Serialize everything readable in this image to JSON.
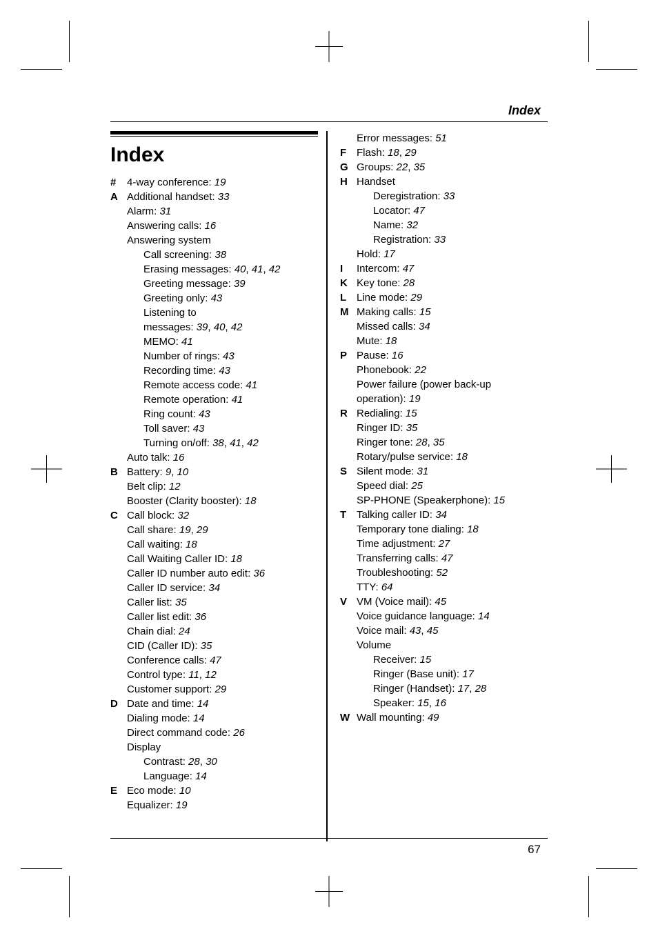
{
  "runningHead": "Index",
  "title": "Index",
  "pageNumber": "67",
  "left": [
    {
      "letter": "#",
      "rows": [
        {
          "t": "4-way conference:",
          "p": "19"
        }
      ]
    },
    {
      "letter": "A",
      "rows": [
        {
          "t": "Additional handset:",
          "p": "33"
        },
        {
          "t": "Alarm:",
          "p": "31"
        },
        {
          "t": "Answering calls:",
          "p": "16"
        },
        {
          "t": "Answering system",
          "p": ""
        },
        {
          "t": "Call screening:",
          "p": "38",
          "indent": 1
        },
        {
          "t": "Erasing messages:",
          "p": "40, 41, 42",
          "indent": 1
        },
        {
          "t": "Greeting message:",
          "p": "39",
          "indent": 1
        },
        {
          "t": "Greeting only:",
          "p": "43",
          "indent": 1
        },
        {
          "t": "Listening to",
          "p": "",
          "indent": 1
        },
        {
          "t": "messages:",
          "p": "39, 40, 42",
          "indent": 1
        },
        {
          "t": "MEMO:",
          "p": "41",
          "indent": 1
        },
        {
          "t": "Number of rings:",
          "p": "43",
          "indent": 1
        },
        {
          "t": "Recording time:",
          "p": "43",
          "indent": 1
        },
        {
          "t": "Remote access code:",
          "p": "41",
          "indent": 1
        },
        {
          "t": "Remote operation:",
          "p": "41",
          "indent": 1
        },
        {
          "t": "Ring count:",
          "p": "43",
          "indent": 1
        },
        {
          "t": "Toll saver:",
          "p": "43",
          "indent": 1
        },
        {
          "t": "Turning on/off:",
          "p": "38, 41, 42",
          "indent": 1
        },
        {
          "t": "Auto talk:",
          "p": "16"
        }
      ]
    },
    {
      "letter": "B",
      "rows": [
        {
          "t": "Battery:",
          "p": "9, 10"
        },
        {
          "t": "Belt clip:",
          "p": "12"
        },
        {
          "t": "Booster (Clarity booster):",
          "p": "18"
        }
      ]
    },
    {
      "letter": "C",
      "rows": [
        {
          "t": "Call block:",
          "p": "32"
        },
        {
          "t": "Call share:",
          "p": "19, 29"
        },
        {
          "t": "Call waiting:",
          "p": "18"
        },
        {
          "t": "Call Waiting Caller ID:",
          "p": "18"
        },
        {
          "t": "Caller ID number auto edit:",
          "p": "36"
        },
        {
          "t": "Caller ID service:",
          "p": "34"
        },
        {
          "t": "Caller list:",
          "p": "35"
        },
        {
          "t": "Caller list edit:",
          "p": "36"
        },
        {
          "t": "Chain dial:",
          "p": "24"
        },
        {
          "t": "CID (Caller ID):",
          "p": "35"
        },
        {
          "t": "Conference calls:",
          "p": "47"
        },
        {
          "t": "Control type:",
          "p": "11, 12"
        },
        {
          "t": "Customer support:",
          "p": "29"
        }
      ]
    },
    {
      "letter": "D",
      "rows": [
        {
          "t": "Date and time:",
          "p": "14"
        },
        {
          "t": "Dialing mode:",
          "p": "14"
        },
        {
          "t": "Direct command code:",
          "p": "26"
        },
        {
          "t": "Display",
          "p": ""
        },
        {
          "t": "Contrast:",
          "p": "28, 30",
          "indent": 1
        },
        {
          "t": "Language:",
          "p": "14",
          "indent": 1
        }
      ]
    },
    {
      "letter": "E",
      "rows": [
        {
          "t": "Eco mode:",
          "p": "10"
        },
        {
          "t": "Equalizer:",
          "p": "19"
        }
      ]
    }
  ],
  "right": [
    {
      "letter": "",
      "rows": [
        {
          "t": "Error messages:",
          "p": "51"
        }
      ]
    },
    {
      "letter": "F",
      "rows": [
        {
          "t": "Flash:",
          "p": "18, 29"
        }
      ]
    },
    {
      "letter": "G",
      "rows": [
        {
          "t": "Groups:",
          "p": "22, 35"
        }
      ]
    },
    {
      "letter": "H",
      "rows": [
        {
          "t": "Handset",
          "p": ""
        },
        {
          "t": "Deregistration:",
          "p": "33",
          "indent": 1
        },
        {
          "t": "Locator:",
          "p": "47",
          "indent": 1
        },
        {
          "t": "Name:",
          "p": "32",
          "indent": 1
        },
        {
          "t": "Registration:",
          "p": "33",
          "indent": 1
        },
        {
          "t": "Hold:",
          "p": "17"
        }
      ]
    },
    {
      "letter": "I",
      "rows": [
        {
          "t": "Intercom:",
          "p": "47"
        }
      ]
    },
    {
      "letter": "K",
      "rows": [
        {
          "t": "Key tone:",
          "p": "28"
        }
      ]
    },
    {
      "letter": "L",
      "rows": [
        {
          "t": "Line mode:",
          "p": "29"
        }
      ]
    },
    {
      "letter": "M",
      "rows": [
        {
          "t": "Making calls:",
          "p": "15"
        },
        {
          "t": "Missed calls:",
          "p": "34"
        },
        {
          "t": "Mute:",
          "p": "18"
        }
      ]
    },
    {
      "letter": "P",
      "rows": [
        {
          "t": "Pause:",
          "p": "16"
        },
        {
          "t": "Phonebook:",
          "p": "22"
        },
        {
          "t": "Power failure (power back-up",
          "p": ""
        },
        {
          "t": "operation):",
          "p": "19"
        }
      ]
    },
    {
      "letter": "R",
      "rows": [
        {
          "t": "Redialing:",
          "p": "15"
        },
        {
          "t": "Ringer ID:",
          "p": "35"
        },
        {
          "t": "Ringer tone:",
          "p": "28, 35"
        },
        {
          "t": "Rotary/pulse service:",
          "p": "18"
        }
      ]
    },
    {
      "letter": "S",
      "rows": [
        {
          "t": "Silent mode:",
          "p": "31"
        },
        {
          "t": "Speed dial:",
          "p": "25"
        },
        {
          "t": "SP-PHONE (Speakerphone):",
          "p": "15"
        }
      ]
    },
    {
      "letter": "T",
      "rows": [
        {
          "t": "Talking caller ID:",
          "p": "34"
        },
        {
          "t": "Temporary tone dialing:",
          "p": "18"
        },
        {
          "t": "Time adjustment:",
          "p": "27"
        },
        {
          "t": "Transferring calls:",
          "p": "47"
        },
        {
          "t": "Troubleshooting:",
          "p": "52"
        },
        {
          "t": "TTY:",
          "p": "64"
        }
      ]
    },
    {
      "letter": "V",
      "rows": [
        {
          "t": "VM (Voice mail):",
          "p": "45"
        },
        {
          "t": "Voice guidance language:",
          "p": "14"
        },
        {
          "t": "Voice mail:",
          "p": "43, 45"
        },
        {
          "t": "Volume",
          "p": ""
        },
        {
          "t": "Receiver:",
          "p": "15",
          "indent": 1
        },
        {
          "t": "Ringer (Base unit):",
          "p": "17",
          "indent": 1
        },
        {
          "t": "Ringer (Handset):",
          "p": "17, 28",
          "indent": 1
        },
        {
          "t": "Speaker:",
          "p": "15, 16",
          "indent": 1
        }
      ]
    },
    {
      "letter": "W",
      "rows": [
        {
          "t": "Wall mounting:",
          "p": "49"
        }
      ]
    }
  ]
}
